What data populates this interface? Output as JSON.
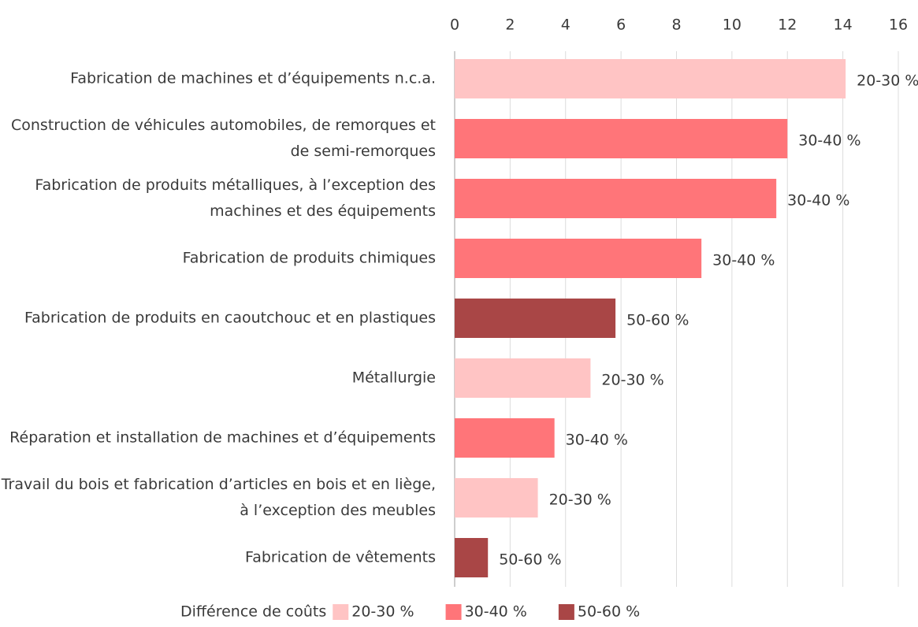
{
  "chart_data": {
    "type": "bar",
    "orientation": "horizontal",
    "categories": [
      "Fabrication de machines et d’équipements n.c.a.",
      "Construction de véhicules automobiles, de remorques et de semi-remorques",
      "Fabrication de produits métalliques, à l’exception des machines et des équipements",
      "Fabrication de produits chimiques",
      "Fabrication de produits en caoutchouc et en plastiques",
      "Métallurgie",
      "Réparation et installation de machines et d’équipements",
      "Travail du bois et fabrication d’articles en bois et en liège, à l’exception des meubles",
      "Fabrication de vêtements"
    ],
    "series": [
      {
        "name": "20-30 %",
        "color": "#ffc4c4",
        "values": [
          14.1,
          null,
          null,
          null,
          null,
          4.9,
          null,
          3.0,
          null
        ]
      },
      {
        "name": "30-40 %",
        "color": "#ff7579",
        "values": [
          null,
          12.0,
          11.6,
          8.9,
          null,
          null,
          3.6,
          null,
          null
        ]
      },
      {
        "name": "50-60 %",
        "color": "#a94646",
        "values": [
          null,
          null,
          null,
          null,
          5.8,
          null,
          null,
          null,
          1.2
        ]
      }
    ],
    "legend_title": "Différence de coûts",
    "xlim": [
      0,
      16
    ],
    "xticks": [
      0,
      2,
      4,
      6,
      8,
      10,
      12,
      14,
      16
    ],
    "grid": true
  }
}
